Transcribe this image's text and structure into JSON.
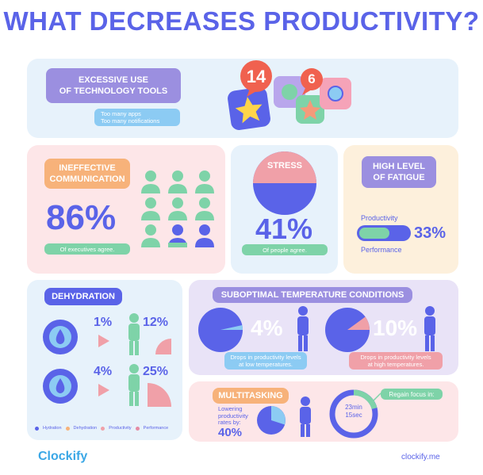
{
  "title": "WHAT DECREASES PRODUCTIVITY?",
  "colors": {
    "primary": "#5a63e8",
    "green": "#7ed3a8",
    "pink": "#f0a0a8",
    "orange": "#f7b27a",
    "light_blue": "#e7f2fb",
    "light_pink": "#fde6e8",
    "light_yellow": "#fdf0dc",
    "light_purple": "#e9e3f7"
  },
  "tech": {
    "label_line1": "EXCESSIVE USE",
    "label_line2": "OF TECHNOLOGY TOOLS",
    "note_line1": "Too many apps",
    "note_line2": "Too many notifications",
    "badge_1": "14",
    "badge_2": "6"
  },
  "communication": {
    "label_line1": "INEFFECTIVE",
    "label_line2": "COMMUNICATION",
    "value": "86%",
    "caption": "Of executives agree."
  },
  "stress": {
    "label": "STRESS",
    "value": "41%",
    "caption": "Of people agree."
  },
  "fatigue": {
    "label_line1": "HIGH LEVEL",
    "label_line2": "OF FATIGUE",
    "top_label": "Productivity",
    "bottom_label": "Performance",
    "value": "33%"
  },
  "dehydration": {
    "label": "DEHYDRATION",
    "row1_dehydration": "1%",
    "row1_performance": "12%",
    "row2_dehydration": "4%",
    "row2_performance": "25%",
    "legend": [
      "Hydration",
      "Dehydration",
      "Productivity",
      "Performance"
    ]
  },
  "temperature": {
    "label": "SUBOPTIMAL TEMPERATURE CONDITIONS",
    "low_value": "4%",
    "high_value": "10%",
    "low_caption_line1": "Drops in productivity levels",
    "low_caption_line2": "at low temperatures.",
    "high_caption_line1": "Drops in productivity levels",
    "high_caption_line2": "at high temperatures."
  },
  "multitasking": {
    "label": "MULTITASKING",
    "sub_line1": "Lowering",
    "sub_line2": "productivity",
    "sub_line3": "rates by:",
    "value": "40%",
    "focus_label": "Regain focus in:",
    "focus_time_line1": "23min",
    "focus_time_line2": "15sec"
  },
  "footer": {
    "brand": "Clockify",
    "url": "clockify.me"
  }
}
